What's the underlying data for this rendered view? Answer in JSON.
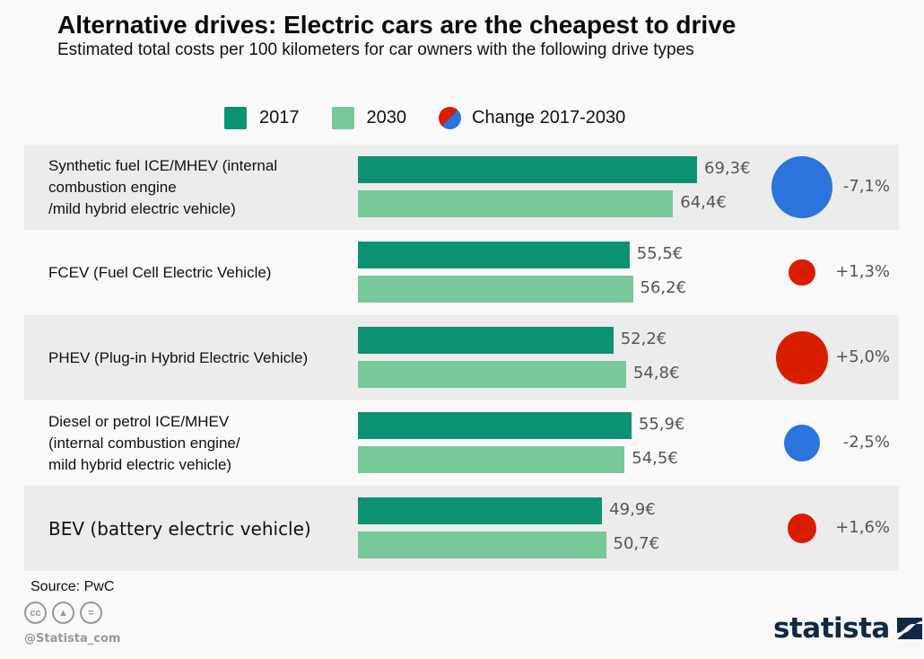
{
  "chart_data": {
    "type": "bar",
    "orientation": "horizontal",
    "title": "Alternative drives: Electric cars are the cheapest to drive",
    "subtitle": "Estimated total costs per 100 kilometers for car owners with the following drive types",
    "unit": "€",
    "categories": [
      "Synthetic fuel ICE/MHEV (internal combustion engine /mild hybrid electric vehicle)",
      "FCEV (Fuel Cell Electric Vehicle)",
      "PHEV (Plug-in Hybrid Electric Vehicle)",
      "Diesel or petrol ICE/MHEV (internal combustion engine/ mild hybrid electric vehicle)",
      "BEV (battery electric vehicle)"
    ],
    "category_label_lines": [
      [
        "Synthetic fuel ICE/MHEV (internal",
        "combustion engine",
        "/mild hybrid electric vehicle)"
      ],
      [
        "FCEV (Fuel Cell Electric Vehicle)"
      ],
      [
        "PHEV (Plug-in Hybrid Electric Vehicle)"
      ],
      [
        "Diesel or petrol ICE/MHEV",
        "(internal combustion engine/",
        "mild hybrid electric vehicle)"
      ],
      [
        "BEV (battery electric vehicle)"
      ]
    ],
    "series": [
      {
        "name": "2017",
        "color": "#0c9273",
        "values": [
          69.3,
          55.5,
          52.2,
          55.9,
          49.9
        ],
        "labels": [
          "69,3€",
          "55,5€",
          "52,2€",
          "55,9€",
          "49,9€"
        ]
      },
      {
        "name": "2030",
        "color": "#78c89a",
        "values": [
          64.4,
          56.2,
          54.8,
          54.5,
          50.7
        ],
        "labels": [
          "64,4€",
          "56,2€",
          "54,8€",
          "54,5€",
          "50,7€"
        ]
      }
    ],
    "change": {
      "name": "Change 2017-2030",
      "values": [
        -7.1,
        1.3,
        5.0,
        -2.5,
        1.6
      ],
      "labels": [
        "-7,1%",
        "+1,3%",
        "+5,0%",
        "-2,5%",
        "+1,6%"
      ],
      "positive_color": "#d91e00",
      "negative_color": "#2a74db"
    },
    "xlim": [
      0,
      70
    ],
    "legend": [
      "2017",
      "2030",
      "Change 2017-2030"
    ],
    "legend_position": "top",
    "grid": false
  },
  "footer": {
    "source": "Source: PwC",
    "license_icons": [
      "cc-icon",
      "by-attribution-icon",
      "no-derivatives-icon"
    ],
    "handle": "@Statista_com",
    "brand": "statista"
  }
}
